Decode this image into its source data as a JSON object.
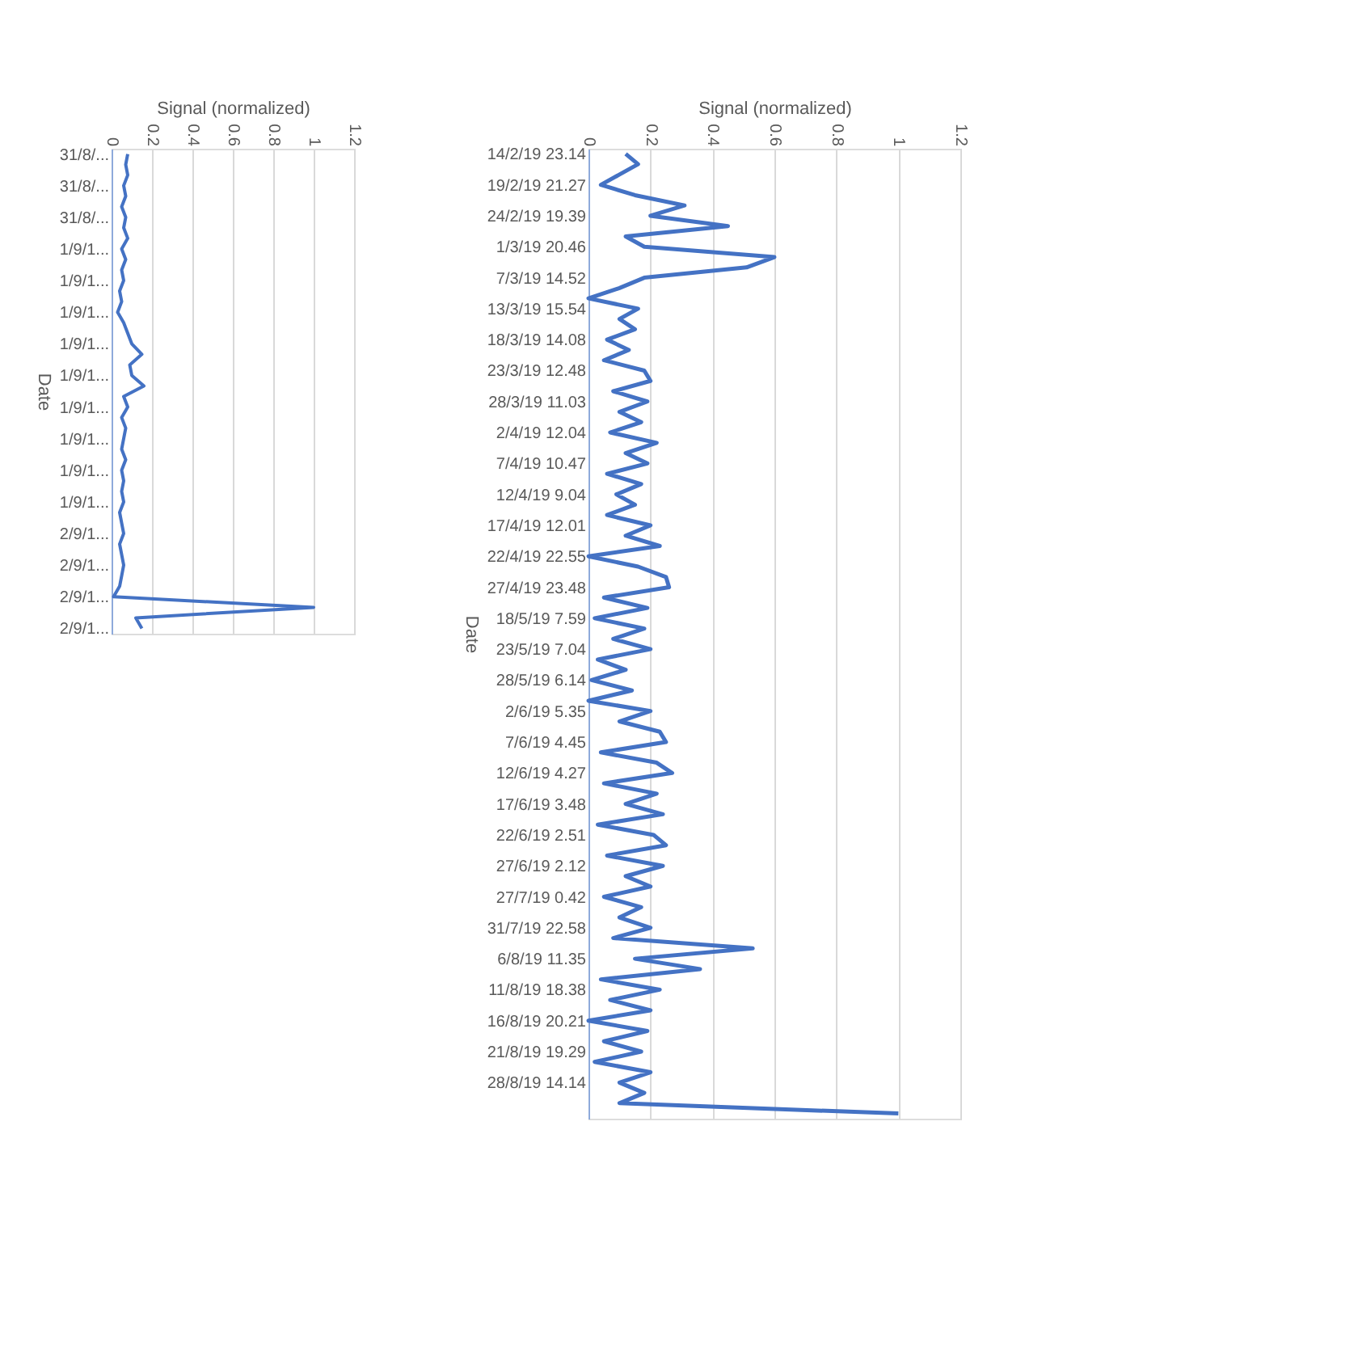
{
  "chart_data": [
    {
      "type": "line",
      "orientation": "horizontal",
      "xlabel": "Signal (normalized)",
      "ylabel": "Date",
      "xlim": [
        0,
        1.2
      ],
      "xticks": [
        0,
        0.2,
        0.4,
        0.6,
        0.8,
        1,
        1.2
      ],
      "grid": "x",
      "marker": "none",
      "line_style": "solid",
      "categories": [
        "31/8/...",
        null,
        null,
        "31/8/...",
        null,
        null,
        "31/8/...",
        null,
        null,
        "1/9/1...",
        null,
        null,
        "1/9/1...",
        null,
        null,
        "1/9/1...",
        null,
        null,
        "1/9/1...",
        null,
        null,
        "1/9/1...",
        null,
        null,
        "1/9/1...",
        null,
        null,
        "1/9/1...",
        null,
        null,
        "1/9/1...",
        null,
        null,
        "1/9/1...",
        null,
        null,
        "2/9/1...",
        null,
        null,
        "2/9/1...",
        null,
        null,
        "2/9/1...",
        null,
        null,
        "2/9/1..."
      ],
      "series": [
        {
          "color": "#4472c4",
          "values": [
            0.08,
            0.07,
            0.08,
            0.06,
            0.07,
            0.05,
            0.07,
            0.06,
            0.08,
            0.05,
            0.07,
            0.05,
            0.06,
            0.04,
            0.05,
            0.03,
            0.06,
            0.08,
            0.1,
            0.15,
            0.09,
            0.1,
            0.16,
            0.06,
            0.08,
            0.05,
            0.07,
            0.06,
            0.05,
            0.07,
            0.05,
            0.06,
            0.05,
            0.06,
            0.04,
            0.05,
            0.06,
            0.04,
            0.05,
            0.06,
            0.05,
            0.04,
            0.01,
            1.0,
            0.12,
            0.15
          ]
        }
      ]
    },
    {
      "type": "line",
      "orientation": "horizontal",
      "xlabel": "Signal (normalized)",
      "ylabel": "Date",
      "xlim": [
        0,
        1.2
      ],
      "xticks": [
        0,
        0.2,
        0.4,
        0.6,
        0.8,
        1,
        1.2
      ],
      "grid": "x",
      "marker": "none",
      "line_style": "solid",
      "categories": [
        "14/2/19 23.14",
        null,
        null,
        "19/2/19 21.27",
        null,
        null,
        "24/2/19 19.39",
        null,
        null,
        "1/3/19 20.46",
        null,
        null,
        "7/3/19 14.52",
        null,
        null,
        "13/3/19 15.54",
        null,
        null,
        "18/3/19 14.08",
        null,
        null,
        "23/3/19 12.48",
        null,
        null,
        "28/3/19 11.03",
        null,
        null,
        "2/4/19 12.04",
        null,
        null,
        "7/4/19 10.47",
        null,
        null,
        "12/4/19 9.04",
        null,
        null,
        "17/4/19 12.01",
        null,
        null,
        "22/4/19 22.55",
        null,
        null,
        "27/4/19 23.48",
        null,
        null,
        "18/5/19 7.59",
        null,
        null,
        "23/5/19 7.04",
        null,
        null,
        "28/5/19 6.14",
        null,
        null,
        "2/6/19 5.35",
        null,
        null,
        "7/6/19 4.45",
        null,
        null,
        "12/6/19 4.27",
        null,
        null,
        "17/6/19 3.48",
        null,
        null,
        "22/6/19 2.51",
        null,
        null,
        "27/6/19 2.12",
        null,
        null,
        "27/7/19 0.42",
        null,
        null,
        "31/7/19 22.58",
        null,
        null,
        "6/8/19 11.35",
        null,
        null,
        "11/8/19 18.38",
        null,
        null,
        "16/8/19 20.21",
        null,
        null,
        "21/8/19 19.29",
        null,
        null,
        "28/8/19 14.14",
        null,
        null,
        null
      ],
      "series": [
        {
          "color": "#4472c4",
          "values": [
            0.12,
            0.16,
            0.1,
            0.04,
            0.15,
            0.31,
            0.2,
            0.45,
            0.12,
            0.18,
            0.6,
            0.51,
            0.18,
            0.1,
            0.0,
            0.16,
            0.1,
            0.15,
            0.06,
            0.13,
            0.05,
            0.18,
            0.2,
            0.08,
            0.19,
            0.1,
            0.17,
            0.07,
            0.22,
            0.12,
            0.19,
            0.06,
            0.17,
            0.09,
            0.15,
            0.06,
            0.2,
            0.12,
            0.23,
            0.0,
            0.16,
            0.25,
            0.26,
            0.05,
            0.19,
            0.02,
            0.18,
            0.08,
            0.2,
            0.03,
            0.12,
            0.01,
            0.14,
            0.0,
            0.2,
            0.1,
            0.23,
            0.25,
            0.04,
            0.22,
            0.27,
            0.05,
            0.22,
            0.12,
            0.24,
            0.03,
            0.21,
            0.25,
            0.06,
            0.24,
            0.12,
            0.2,
            0.05,
            0.17,
            0.1,
            0.2,
            0.08,
            0.53,
            0.15,
            0.36,
            0.04,
            0.23,
            0.07,
            0.2,
            0.0,
            0.19,
            0.05,
            0.17,
            0.02,
            0.2,
            0.1,
            0.18,
            0.1,
            1.0
          ]
        }
      ]
    }
  ]
}
